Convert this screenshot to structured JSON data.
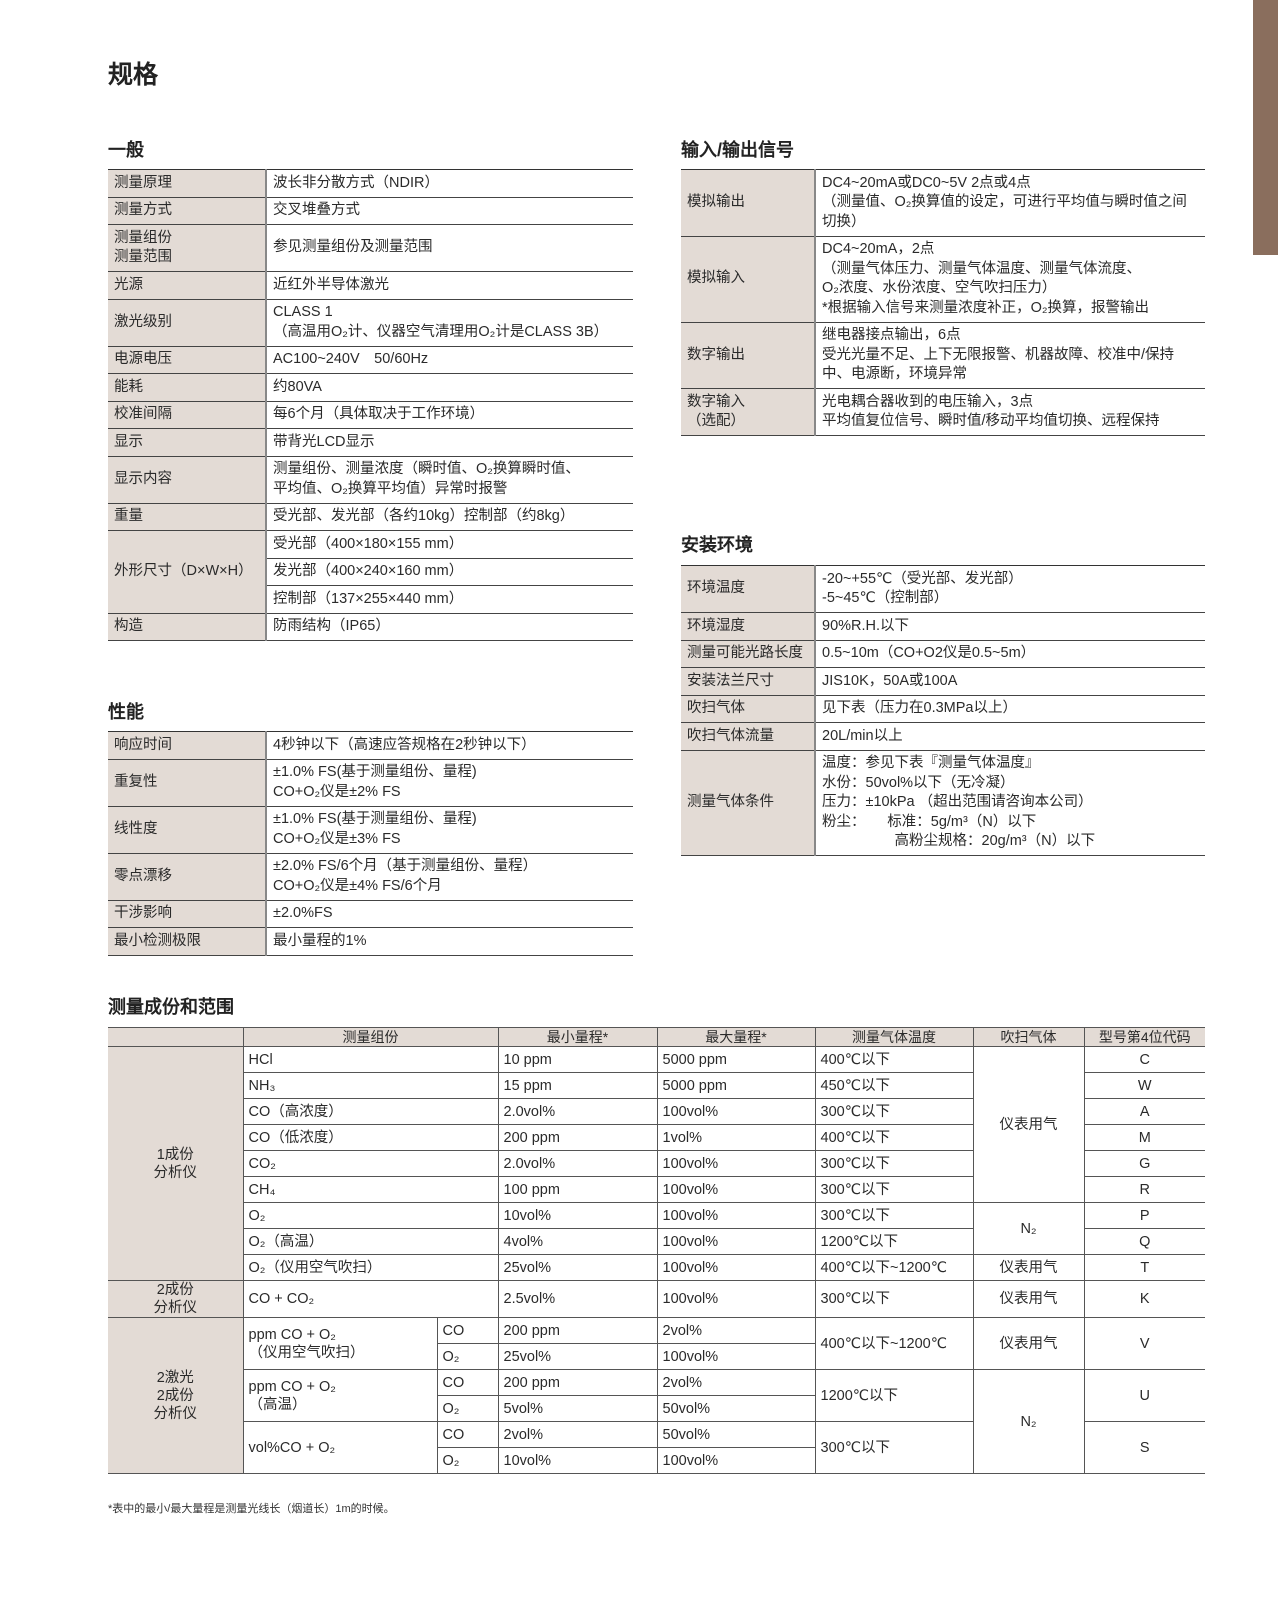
{
  "accent_color": "#8a6e5d",
  "label_bg_color": "#e3dbd5",
  "page_title": "规格",
  "general": {
    "heading": "一般",
    "rows": [
      {
        "label": "测量原理",
        "value": "波长非分散方式（NDIR）"
      },
      {
        "label": "测量方式",
        "value": "交叉堆叠方式"
      },
      {
        "label": "测量组份\n测量范围",
        "value": "参见测量组份及测量范围"
      },
      {
        "label": "光源",
        "value": "近红外半导体激光"
      },
      {
        "label": "激光级别",
        "value": "CLASS 1\n（高温用O₂计、仪器空气清理用O₂计是CLASS 3B）"
      },
      {
        "label": "电源电压",
        "value": "AC100~240V　50/60Hz"
      },
      {
        "label": "能耗",
        "value": "约80VA"
      },
      {
        "label": "校准间隔",
        "value": "每6个月（具体取决于工作环境）"
      },
      {
        "label": "显示",
        "value": "带背光LCD显示"
      },
      {
        "label": "显示内容",
        "value": "测量组份、测量浓度（瞬时值、O₂换算瞬时值、\n平均值、O₂换算平均值）异常时报警"
      },
      {
        "label": "重量",
        "value": "受光部、发光部（各约10kg）控制部（约8kg）"
      },
      {
        "label": "外形尺寸（D×W×H）",
        "values": [
          "受光部（400×180×155 mm）",
          "发光部（400×240×160 mm）",
          "控制部（137×255×440 mm）"
        ]
      },
      {
        "label": "构造",
        "value": "防雨结构（IP65）"
      }
    ]
  },
  "performance": {
    "heading": "性能",
    "rows": [
      {
        "label": "响应时间",
        "value": "4秒钟以下（高速应答规格在2秒钟以下）"
      },
      {
        "label": "重复性",
        "value": "±1.0% FS(基于测量组份、量程)\nCO+O₂仪是±2% FS"
      },
      {
        "label": "线性度",
        "value": "±1.0% FS(基于测量组份、量程)\nCO+O₂仪是±3% FS"
      },
      {
        "label": "零点漂移",
        "value": "±2.0% FS/6个月（基于测量组份、量程）\nCO+O₂仪是±4% FS/6个月"
      },
      {
        "label": "干涉影响",
        "value": "±2.0%FS"
      },
      {
        "label": "最小检测极限",
        "value": "最小量程的1%"
      }
    ]
  },
  "io_signals": {
    "heading": "输入/输出信号",
    "rows": [
      {
        "label": "模拟输出",
        "value": "DC4~20mA或DC0~5V 2点或4点\n（测量值、O₂换算值的设定，可进行平均值与瞬时值之间\n切换）"
      },
      {
        "label": "模拟输入",
        "value": "DC4~20mA，2点\n（测量气体压力、测量气体温度、测量气体流度、\nO₂浓度、水份浓度、空气吹扫压力）\n*根据输入信号来测量浓度补正，O₂换算，报警输出"
      },
      {
        "label": "数字输出",
        "value": "继电器接点输出，6点\n受光光量不足、上下无限报警、机器故障、校准中/保持\n中、电源断，环境异常"
      },
      {
        "label": "数字输入\n（选配）",
        "value": "光电耦合器收到的电压输入，3点\n平均值复位信号、瞬时值/移动平均值切换、远程保持"
      }
    ]
  },
  "installation": {
    "heading": "安装环境",
    "rows": [
      {
        "label": "环境温度",
        "value": "-20~+55℃（受光部、发光部）\n-5~45℃（控制部）"
      },
      {
        "label": "环境湿度",
        "value": "90%R.H.以下"
      },
      {
        "label": "测量可能光路长度",
        "value": "0.5~10m（CO+O2仪是0.5~5m）"
      },
      {
        "label": "安装法兰尺寸",
        "value": "JIS10K，50A或100A"
      },
      {
        "label": "吹扫气体",
        "value": "见下表（压力在0.3MPa以上）"
      },
      {
        "label": "吹扫气体流量",
        "value": "20L/min以上"
      },
      {
        "label": "测量气体条件",
        "value": "温度：参见下表『测量气体温度』\n水份：50vol%以下（无冷凝）\n压力：±10kPa （超出范围请咨询本公司）\n粉尘：　　标准：5g/m³（N）以下\n　　　　　高粉尘规格：20g/m³（N）以下"
      }
    ]
  },
  "composition_table": {
    "heading": "测量成份和范围",
    "headers": [
      "测量组份",
      "最小量程*",
      "最大量程*",
      "测量气体温度",
      "吹扫气体",
      "型号第4位代码"
    ],
    "groups": [
      {
        "label": "1成份\n分析仪",
        "models": [
          {
            "component": "HCl",
            "min": "10 ppm",
            "max": "5000 ppm",
            "temp": "400℃以下",
            "code": "C"
          },
          {
            "component": "NH₃",
            "min": "15 ppm",
            "max": "5000 ppm",
            "temp": "450℃以下",
            "code": "W"
          },
          {
            "component": "CO（高浓度）",
            "min": "2.0vol%",
            "max": "100vol%",
            "temp": "300℃以下",
            "code": "A"
          },
          {
            "component": "CO（低浓度）",
            "min": "200 ppm",
            "max": "1vol%",
            "temp": "400℃以下",
            "code": "M"
          },
          {
            "component": "CO₂",
            "min": "2.0vol%",
            "max": "100vol%",
            "temp": "300℃以下",
            "code": "G"
          },
          {
            "component": "CH₄",
            "min": "100 ppm",
            "max": "100vol%",
            "temp": "300℃以下",
            "code": "R"
          },
          {
            "component": "O₂",
            "min": "10vol%",
            "max": "100vol%",
            "temp": "300℃以下",
            "code": "P"
          },
          {
            "component": "O₂（高温）",
            "min": "4vol%",
            "max": "100vol%",
            "temp": "1200℃以下",
            "code": "Q"
          },
          {
            "component": "O₂（仪用空气吹扫）",
            "min": "25vol%",
            "max": "100vol%",
            "temp": "400℃以下~1200℃",
            "code": "T"
          }
        ]
      },
      {
        "label": "2成份\n分析仪",
        "models": [
          {
            "component": "CO + CO₂",
            "min": "2.5vol%",
            "max": "100vol%",
            "temp": "300℃以下",
            "code": "K"
          }
        ]
      },
      {
        "label": "2激光\n2成份\n分析仪",
        "models": [
          {
            "component": "ppm CO + O₂\n（仪用空气吹扫）",
            "parts": [
              {
                "gas": "CO",
                "min": "200 ppm",
                "max": "2vol%"
              },
              {
                "gas": "O₂",
                "min": "25vol%",
                "max": "100vol%"
              }
            ],
            "temp": "400℃以下~1200℃",
            "code": "V"
          },
          {
            "component": "ppm CO + O₂\n（高温）",
            "parts": [
              {
                "gas": "CO",
                "min": "200 ppm",
                "max": "2vol%"
              },
              {
                "gas": "O₂",
                "min": "5vol%",
                "max": "50vol%"
              }
            ],
            "temp": "1200℃以下",
            "code": "U"
          },
          {
            "component": "vol%CO + O₂",
            "parts": [
              {
                "gas": "CO",
                "min": "2vol%",
                "max": "50vol%"
              },
              {
                "gas": "O₂",
                "min": "10vol%",
                "max": "100vol%"
              }
            ],
            "temp": "300℃以下",
            "code": "S"
          }
        ]
      }
    ],
    "purge": [
      {
        "text": "仪表用气",
        "span": 6
      },
      {
        "text": "N₂",
        "span": 2
      },
      {
        "text": "仪表用气",
        "span": 1
      },
      {
        "text": "仪表用气",
        "span": 1
      },
      {
        "text": "仪表用气",
        "span": 2
      },
      {
        "text": "N₂",
        "span": 4
      }
    ],
    "footnote": "*表中的最小/最大量程是测量光线长（烟道长）1m的时候。"
  }
}
